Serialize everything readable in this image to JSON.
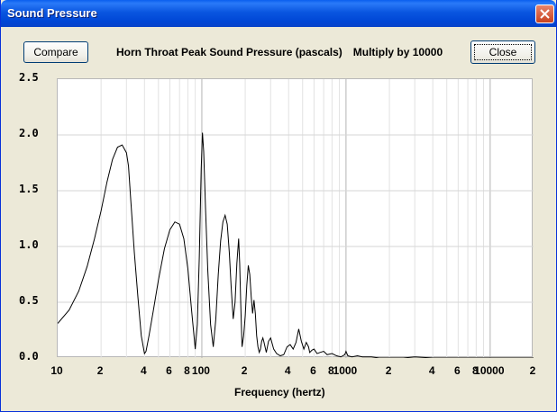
{
  "window": {
    "title": "Sound Pressure"
  },
  "toolbar": {
    "compare_label": "Compare",
    "heading": "Horn Throat Peak Sound Pressure (pascals)",
    "multiplier": "Multiply by 10000",
    "close_label": "Close"
  },
  "icons": {
    "window_close": "close-x-icon"
  },
  "chart_data": {
    "type": "line",
    "x_scale": "log",
    "xlim": [
      10,
      20000
    ],
    "ylim": [
      0,
      2.5
    ],
    "xlabel": "Frequency (hertz)",
    "ylabel": "",
    "y_tick_labels": [
      "0.0",
      "0.5",
      "1.0",
      "1.5",
      "2.0",
      "2.5"
    ],
    "x_tick_labels": [
      {
        "value": 10,
        "label": "10"
      },
      {
        "value": 20,
        "label": "2"
      },
      {
        "value": 40,
        "label": "4"
      },
      {
        "value": 60,
        "label": "6"
      },
      {
        "value": 80,
        "label": "8"
      },
      {
        "value": 100,
        "label": "100"
      },
      {
        "value": 200,
        "label": "2"
      },
      {
        "value": 400,
        "label": "4"
      },
      {
        "value": 600,
        "label": "6"
      },
      {
        "value": 800,
        "label": "8"
      },
      {
        "value": 1000,
        "label": "1000"
      },
      {
        "value": 2000,
        "label": "2"
      },
      {
        "value": 4000,
        "label": "4"
      },
      {
        "value": 6000,
        "label": "6"
      },
      {
        "value": 8000,
        "label": "8"
      },
      {
        "value": 10000,
        "label": "10000"
      },
      {
        "value": 20000,
        "label": "2"
      }
    ],
    "grid": true,
    "series": [
      {
        "color": "#000000",
        "x": [
          10,
          12,
          14,
          16,
          18,
          20,
          22,
          24,
          26,
          28,
          30,
          31,
          32,
          34,
          36,
          38,
          40,
          41,
          43,
          46,
          50,
          55,
          60,
          65,
          70,
          75,
          80,
          85,
          90,
          93,
          96,
          99,
          101,
          103,
          106,
          110,
          115,
          120,
          125,
          130,
          135,
          140,
          145,
          150,
          155,
          160,
          165,
          170,
          175,
          180,
          183,
          186,
          188,
          190,
          195,
          200,
          205,
          210,
          215,
          220,
          225,
          230,
          235,
          240,
          245,
          250,
          255,
          260,
          265,
          270,
          280,
          290,
          300,
          315,
          330,
          350,
          370,
          390,
          410,
          430,
          450,
          470,
          490,
          510,
          530,
          550,
          560,
          580,
          600,
          630,
          660,
          700,
          740,
          800,
          860,
          920,
          980,
          1000,
          1030,
          1100,
          1200,
          1300,
          1500,
          1700,
          2000,
          2500,
          3000,
          4000,
          5000,
          7000,
          10000,
          14000,
          20000
        ],
        "y": [
          0.31,
          0.43,
          0.6,
          0.82,
          1.07,
          1.32,
          1.58,
          1.78,
          1.89,
          1.91,
          1.84,
          1.72,
          1.45,
          0.95,
          0.55,
          0.2,
          0.04,
          0.06,
          0.2,
          0.42,
          0.7,
          0.98,
          1.15,
          1.22,
          1.2,
          1.07,
          0.8,
          0.42,
          0.08,
          0.3,
          0.9,
          1.7,
          2.02,
          1.85,
          1.35,
          0.78,
          0.3,
          0.1,
          0.35,
          0.75,
          1.05,
          1.22,
          1.28,
          1.2,
          0.95,
          0.62,
          0.35,
          0.5,
          0.85,
          1.07,
          0.85,
          0.5,
          0.3,
          0.1,
          0.2,
          0.38,
          0.65,
          0.83,
          0.75,
          0.55,
          0.4,
          0.52,
          0.4,
          0.2,
          0.1,
          0.05,
          0.08,
          0.15,
          0.18,
          0.14,
          0.05,
          0.15,
          0.18,
          0.08,
          0.04,
          0.02,
          0.03,
          0.1,
          0.12,
          0.08,
          0.14,
          0.26,
          0.15,
          0.08,
          0.14,
          0.1,
          0.05,
          0.07,
          0.08,
          0.04,
          0.05,
          0.06,
          0.03,
          0.04,
          0.02,
          0.01,
          0.03,
          0.06,
          0.02,
          0.01,
          0.02,
          0.01,
          0.01,
          0.0,
          0.0,
          0.0,
          0.01,
          0.0,
          0.0,
          0.0,
          0.0,
          0.0,
          0.0
        ]
      }
    ]
  }
}
